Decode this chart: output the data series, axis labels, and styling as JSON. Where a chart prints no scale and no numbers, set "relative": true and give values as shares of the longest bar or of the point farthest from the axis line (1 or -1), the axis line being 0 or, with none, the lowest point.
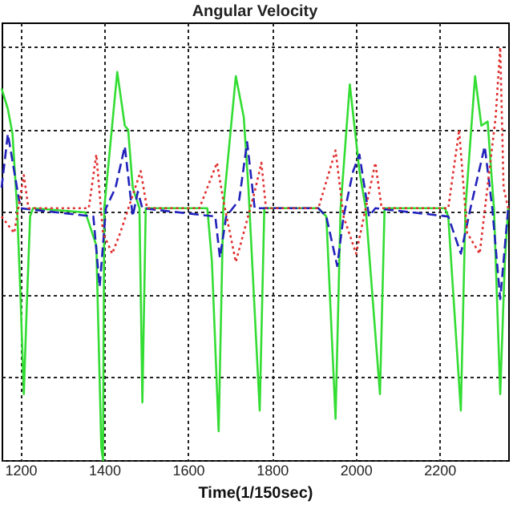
{
  "chart_data": {
    "type": "line",
    "title": "Angular Velocity",
    "xlabel": "Time(1/150sec)",
    "relative": true,
    "xlim": [
      1155,
      2364
    ],
    "xticks": [
      1200,
      1400,
      1600,
      1800,
      2000,
      2200
    ],
    "grid": true,
    "series": [
      {
        "color": "#33dd33",
        "line_style": "solid",
        "x": [
          1155,
          1170,
          1181,
          1192,
          1200,
          1208,
          1215,
          1223,
          1230,
          1355,
          1381,
          1393,
          1397,
          1400,
          1431,
          1449,
          1457,
          1468,
          1484,
          1491,
          1499,
          1638,
          1646,
          1657,
          1673,
          1684,
          1714,
          1733,
          1744,
          1771,
          1782,
          1911,
          1930,
          1952,
          1964,
          1986,
          2009,
          2024,
          2058,
          2069,
          2213,
          2221,
          2251,
          2262,
          2285,
          2300,
          2315,
          2330,
          2345,
          2356,
          2364
        ],
        "values": [
          0.9,
          0.85,
          0.79,
          0.61,
          0.4,
          0.16,
          0.37,
          0.59,
          0.61,
          0.6,
          0.52,
          0.03,
          0.0,
          0.61,
          0.94,
          0.81,
          0.8,
          0.66,
          0.61,
          0.14,
          0.61,
          0.61,
          0.61,
          0.48,
          0.07,
          0.61,
          0.93,
          0.83,
          0.66,
          0.12,
          0.61,
          0.61,
          0.59,
          0.1,
          0.61,
          0.91,
          0.7,
          0.61,
          0.16,
          0.61,
          0.61,
          0.59,
          0.12,
          0.61,
          0.93,
          0.81,
          0.82,
          0.61,
          0.16,
          0.48,
          0.61
        ]
      },
      {
        "color": "#2222bb",
        "line_style": "dashed",
        "x": [
          1155,
          1170,
          1185,
          1200,
          1374,
          1389,
          1404,
          1427,
          1449,
          1468,
          1480,
          1491,
          1665,
          1676,
          1691,
          1722,
          1741,
          1759,
          1911,
          1930,
          1956,
          1971,
          1994,
          2009,
          2032,
          2047,
          2221,
          2251,
          2274,
          2308,
          2326,
          2345,
          2364
        ],
        "values": [
          0.66,
          0.79,
          0.7,
          0.61,
          0.59,
          0.42,
          0.61,
          0.66,
          0.76,
          0.59,
          0.65,
          0.61,
          0.59,
          0.49,
          0.59,
          0.63,
          0.77,
          0.61,
          0.61,
          0.59,
          0.47,
          0.59,
          0.7,
          0.74,
          0.59,
          0.61,
          0.59,
          0.5,
          0.61,
          0.76,
          0.61,
          0.39,
          0.61
        ]
      },
      {
        "color": "#e03030",
        "line_style": "dotted",
        "x": [
          1155,
          1185,
          1208,
          1219,
          1363,
          1381,
          1397,
          1419,
          1438,
          1487,
          1502,
          1627,
          1669,
          1684,
          1714,
          1759,
          1775,
          1786,
          1911,
          1952,
          1971,
          2001,
          2047,
          2062,
          2221,
          2247,
          2266,
          2296,
          2334,
          2345,
          2353,
          2364
        ],
        "values": [
          0.59,
          0.55,
          0.69,
          0.61,
          0.61,
          0.74,
          0.55,
          0.5,
          0.55,
          0.7,
          0.61,
          0.61,
          0.72,
          0.63,
          0.48,
          0.65,
          0.72,
          0.61,
          0.61,
          0.75,
          0.59,
          0.5,
          0.72,
          0.61,
          0.61,
          0.8,
          0.55,
          0.5,
          0.83,
          1.0,
          0.66,
          0.61
        ]
      }
    ]
  }
}
